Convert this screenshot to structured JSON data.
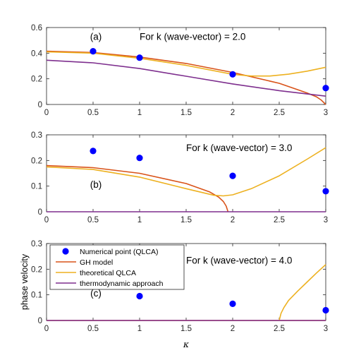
{
  "chart_data": [
    {
      "type": "line",
      "panel_label": "(a)",
      "title": "For k (wave-vector) = 2.0",
      "xlim": [
        0,
        3
      ],
      "ylim": [
        0,
        0.6
      ],
      "xticks": [
        "0",
        "0.5",
        "1",
        "1.5",
        "2",
        "2.5",
        "3"
      ],
      "yticks": [
        "0",
        "0.2",
        "0.4",
        "0.6"
      ],
      "ylabel": "",
      "series": [
        {
          "name": "Numerical point (QLCA)",
          "color": "#0000ff",
          "marker": "circle",
          "x": [
            0.5,
            1,
            2,
            3
          ],
          "y": [
            0.415,
            0.365,
            0.235,
            0.128
          ]
        },
        {
          "name": "GH model",
          "color": "#d95319",
          "x": [
            0,
            0.5,
            1,
            1.5,
            2,
            2.5,
            2.8,
            2.9,
            2.95,
            3.0
          ],
          "y": [
            0.415,
            0.405,
            0.37,
            0.32,
            0.25,
            0.165,
            0.09,
            0.06,
            0.035,
            0.0
          ]
        },
        {
          "name": "theoretical QLCA",
          "color": "#edb120",
          "x": [
            0,
            0.5,
            1,
            1.5,
            2,
            2.2,
            2.4,
            2.6,
            2.8,
            3.0
          ],
          "y": [
            0.41,
            0.4,
            0.36,
            0.305,
            0.235,
            0.222,
            0.222,
            0.236,
            0.26,
            0.29
          ]
        },
        {
          "name": "thermodynamic approach",
          "color": "#7e2f8e",
          "x": [
            0,
            0.5,
            1,
            1.5,
            2,
            2.5,
            3.0
          ],
          "y": [
            0.345,
            0.325,
            0.28,
            0.22,
            0.16,
            0.108,
            0.065
          ]
        }
      ]
    },
    {
      "type": "line",
      "panel_label": "(b)",
      "title": "For k (wave-vector) = 3.0",
      "xlim": [
        0,
        3
      ],
      "ylim": [
        0,
        0.3
      ],
      "xticks": [
        "0",
        "0.5",
        "1",
        "1.5",
        "2",
        "2.5",
        "3"
      ],
      "yticks": [
        "0",
        "0.1",
        "0.2",
        "0.3"
      ],
      "ylabel": "",
      "series": [
        {
          "name": "Numerical point (QLCA)",
          "color": "#0000ff",
          "marker": "circle",
          "x": [
            0.5,
            1,
            2,
            3
          ],
          "y": [
            0.237,
            0.21,
            0.14,
            0.08
          ]
        },
        {
          "name": "GH model",
          "color": "#d95319",
          "x": [
            0,
            0.5,
            1,
            1.5,
            1.75,
            1.85,
            1.9,
            1.93,
            1.95
          ],
          "y": [
            0.18,
            0.172,
            0.15,
            0.11,
            0.078,
            0.057,
            0.04,
            0.022,
            0.0
          ]
        },
        {
          "name": "theoretical QLCA",
          "color": "#edb120",
          "x": [
            0,
            0.5,
            1,
            1.5,
            1.8,
            1.9,
            2.0,
            2.2,
            2.5,
            2.8,
            3.0
          ],
          "y": [
            0.175,
            0.165,
            0.135,
            0.09,
            0.064,
            0.062,
            0.066,
            0.09,
            0.14,
            0.205,
            0.25
          ]
        },
        {
          "name": "thermodynamic approach",
          "color": "#7e2f8e",
          "x": [
            0,
            3
          ],
          "y": [
            0,
            0
          ]
        }
      ]
    },
    {
      "type": "line",
      "panel_label": "(c)",
      "title": "For k (wave-vector) = 4.0",
      "xlim": [
        0,
        3
      ],
      "ylim": [
        0,
        0.3
      ],
      "xticks": [
        "0",
        "0.5",
        "1",
        "1.5",
        "2",
        "2.5",
        "3"
      ],
      "yticks": [
        "0",
        "0.1",
        "0.2",
        "0.3"
      ],
      "ylabel": "phase velocity",
      "xlabel": "κ",
      "legend_position": "top-left",
      "series": [
        {
          "name": "Numerical point (QLCA)",
          "color": "#0000ff",
          "marker": "circle",
          "x": [
            1,
            2,
            3
          ],
          "y": [
            0.095,
            0.065,
            0.04
          ]
        },
        {
          "name": "GH model",
          "color": "#d95319",
          "x": [
            0,
            3
          ],
          "y": [
            0,
            0
          ]
        },
        {
          "name": "theoretical QLCA",
          "color": "#edb120",
          "x": [
            2.5,
            2.52,
            2.55,
            2.6,
            2.7,
            2.8,
            2.9,
            3.0
          ],
          "y": [
            0.0,
            0.028,
            0.05,
            0.078,
            0.115,
            0.15,
            0.185,
            0.218
          ]
        },
        {
          "name": "thermodynamic approach",
          "color": "#7e2f8e",
          "x": [
            0,
            3
          ],
          "y": [
            0,
            0
          ]
        }
      ]
    }
  ]
}
